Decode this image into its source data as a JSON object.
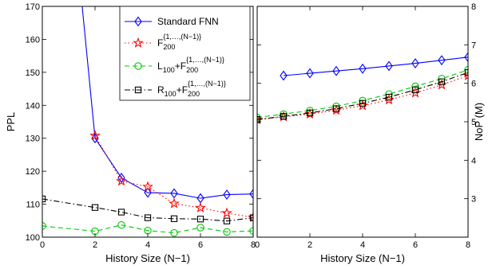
{
  "chart_data": [
    {
      "type": "line",
      "xlabel": "History Size (N−1)",
      "ylabel": "PPL",
      "xlim": [
        0,
        8
      ],
      "ylim": [
        100,
        170
      ],
      "xticks": [
        0,
        2,
        4,
        6,
        8
      ],
      "yticks": [
        100,
        110,
        120,
        130,
        140,
        150,
        160,
        170
      ],
      "grid": false,
      "legend_position": "top-right",
      "series": [
        {
          "name": "Standard FNN",
          "color": "#0000ff",
          "marker": "diamond",
          "dash": "solid",
          "x": [
            1,
            2,
            3,
            4,
            5,
            6,
            7,
            8
          ],
          "y": [
            212,
            130,
            118,
            113.5,
            113.3,
            111.8,
            112.9,
            113.1
          ]
        },
        {
          "name_base": "F",
          "name_sub": "200",
          "name_sup": "{1,…,(N−1)}",
          "color": "#ff0000",
          "marker": "star",
          "dash": "dotted",
          "x": [
            2,
            3,
            4,
            5,
            6,
            7,
            8
          ],
          "y": [
            130.8,
            117,
            115.3,
            110.2,
            108.9,
            107.3,
            106
          ]
        },
        {
          "name_base": "L",
          "name_sub": "100",
          "name_mid": "+F",
          "name_sub2": "200",
          "name_sup2": "{1,…,(N−1)}",
          "color": "#00c800",
          "marker": "circle",
          "dash": "dashed",
          "x": [
            0,
            2,
            3,
            4,
            5,
            6,
            7,
            8
          ],
          "y": [
            103.4,
            101.8,
            103.7,
            102,
            101.3,
            102.9,
            101.6,
            101.9
          ]
        },
        {
          "name_base": "R",
          "name_sub": "100",
          "name_mid": "+F",
          "name_sub2": "200",
          "name_sup2": "{1,…,(N−1)}",
          "color": "#000000",
          "marker": "square",
          "dash": "dashdot",
          "x": [
            0,
            2,
            3,
            4,
            5,
            6,
            7,
            8
          ],
          "y": [
            111.6,
            109,
            107.6,
            105.9,
            105.6,
            105.5,
            104.9,
            105.9
          ]
        }
      ]
    },
    {
      "type": "line",
      "xlabel": "History Size (N−1)",
      "ylabel": "NoP (M)",
      "xlim": [
        0,
        8
      ],
      "ylim": [
        2,
        8
      ],
      "xticks": [
        0,
        2,
        4,
        6,
        8
      ],
      "yticks": [
        3,
        4,
        5,
        6,
        7,
        8
      ],
      "grid": false,
      "series": [
        {
          "color": "#0000ff",
          "marker": "diamond",
          "dash": "solid",
          "x": [
            1,
            2,
            3,
            4,
            5,
            6,
            7,
            8
          ],
          "y": [
            6.2,
            6.26,
            6.32,
            6.38,
            6.45,
            6.52,
            6.6,
            6.68
          ]
        },
        {
          "color": "#ff0000",
          "marker": "star",
          "dash": "dotted",
          "x": [
            0,
            1,
            2,
            3,
            4,
            5,
            6,
            7,
            8
          ],
          "y": [
            5.05,
            5.13,
            5.2,
            5.3,
            5.42,
            5.57,
            5.75,
            5.96,
            6.2
          ]
        },
        {
          "color": "#00c800",
          "marker": "circle",
          "dash": "dashed",
          "x": [
            0,
            1,
            2,
            3,
            4,
            5,
            6,
            7,
            8
          ],
          "y": [
            5.11,
            5.2,
            5.29,
            5.4,
            5.55,
            5.72,
            5.92,
            6.12,
            6.35
          ]
        },
        {
          "color": "#000000",
          "marker": "square",
          "dash": "dashdot",
          "x": [
            0,
            1,
            2,
            3,
            4,
            5,
            6,
            7,
            8
          ],
          "y": [
            5.06,
            5.14,
            5.23,
            5.34,
            5.48,
            5.64,
            5.83,
            6.04,
            6.28
          ]
        }
      ]
    }
  ]
}
